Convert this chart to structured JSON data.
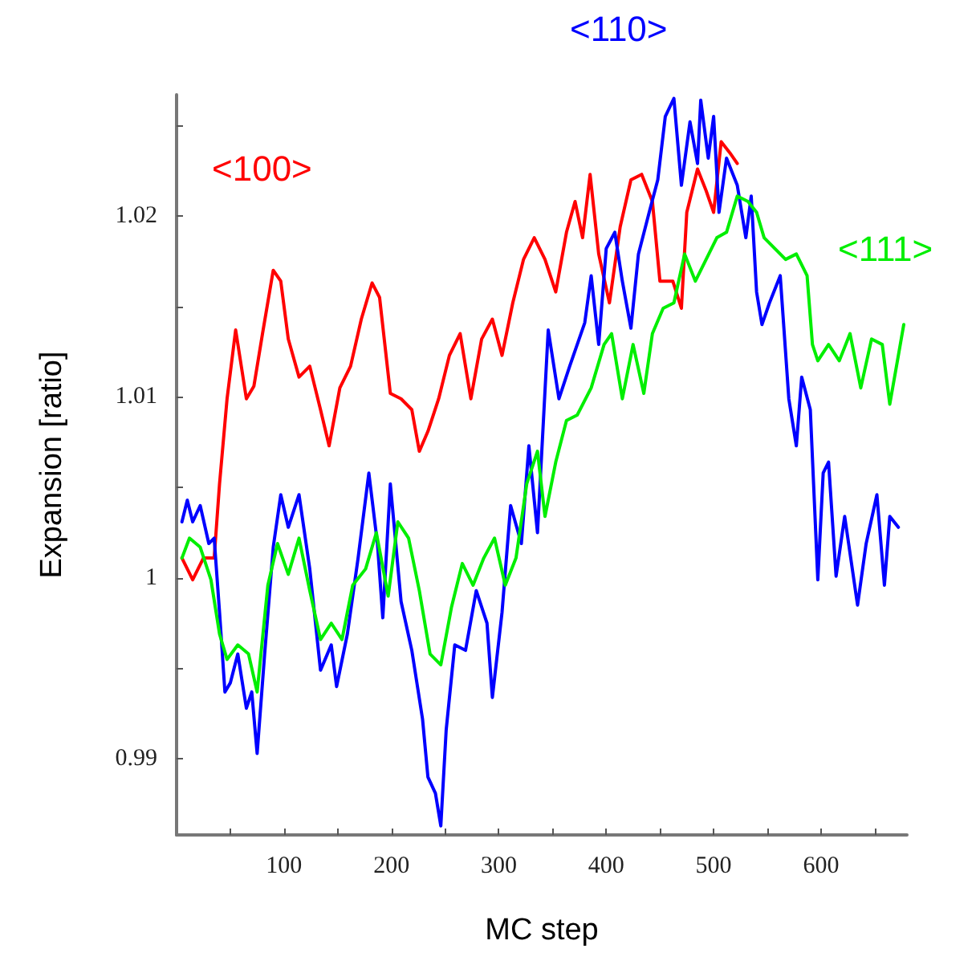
{
  "chart_data": {
    "type": "line",
    "xlabel": "MC step",
    "ylabel": "Expansion [ratio]",
    "xlim": [
      0,
      680
    ],
    "ylim": [
      0.9858,
      1.0267
    ],
    "xticks": [
      {
        "value": 50,
        "label": null
      },
      100,
      {
        "value": 150,
        "label": null
      },
      200,
      {
        "value": 250,
        "label": null
      },
      300,
      {
        "value": 350,
        "label": null
      },
      400,
      {
        "value": 450,
        "label": null
      },
      500,
      {
        "value": 550,
        "label": null
      },
      600,
      {
        "value": 650,
        "label": null
      }
    ],
    "yticks": [
      0.99,
      {
        "value": 0.995,
        "label": null
      },
      1,
      {
        "value": 1.005,
        "label": null
      },
      1.01,
      {
        "value": 1.015,
        "label": null
      },
      1.02,
      {
        "value": 1.025,
        "label": null
      }
    ],
    "grid": false,
    "legend": false,
    "marker": "none",
    "line_style": "solid",
    "series": [
      {
        "name": "<100>",
        "color": "#ff0000",
        "x": [
          5,
          15,
          25,
          35,
          40,
          47,
          55,
          65,
          72,
          80,
          90,
          97,
          104,
          114,
          124,
          134,
          142,
          152,
          162,
          172,
          182,
          189,
          199,
          209,
          219,
          226,
          234,
          244,
          254,
          264,
          274,
          284,
          294,
          303,
          313,
          323,
          333,
          343,
          353,
          363,
          371,
          378,
          385,
          393,
          403,
          413,
          423,
          433,
          443,
          450,
          462,
          470,
          475,
          485,
          493,
          500,
          507,
          515,
          522
        ],
        "values": [
          1.0011,
          0.9999,
          1.0011,
          1.0011,
          1.0052,
          1.0099,
          1.0137,
          1.0099,
          1.0106,
          1.0135,
          1.017,
          1.0164,
          1.0132,
          1.0111,
          1.0117,
          1.0093,
          1.0073,
          1.0105,
          1.0117,
          1.0143,
          1.0163,
          1.0155,
          1.0102,
          1.0099,
          1.0093,
          1.007,
          1.0081,
          1.0099,
          1.0123,
          1.0135,
          1.0099,
          1.0132,
          1.0143,
          1.0123,
          1.0152,
          1.0176,
          1.0188,
          1.0176,
          1.0158,
          1.0191,
          1.0208,
          1.0188,
          1.0223,
          1.0179,
          1.0152,
          1.0194,
          1.022,
          1.0223,
          1.0208,
          1.0164,
          1.0164,
          1.0149,
          1.0202,
          1.0226,
          1.0214,
          1.0202,
          1.0241,
          1.0235,
          1.0229
        ]
      },
      {
        "name": "<110>",
        "color": "#0000ff",
        "x": [
          5,
          10,
          15,
          22,
          30,
          35,
          40,
          45,
          50,
          57,
          65,
          70,
          75,
          82,
          90,
          97,
          104,
          114,
          124,
          134,
          144,
          149,
          159,
          169,
          179,
          187,
          192,
          199,
          209,
          219,
          229,
          234,
          241,
          246,
          251,
          259,
          269,
          279,
          289,
          294,
          303,
          311,
          321,
          328,
          336,
          346,
          356,
          366,
          380,
          386,
          393,
          400,
          408,
          415,
          423,
          430,
          440,
          448,
          455,
          463,
          470,
          478,
          485,
          488,
          495,
          500,
          505,
          512,
          522,
          530,
          535,
          540,
          545,
          552,
          562,
          570,
          577,
          582,
          590,
          597,
          602,
          607,
          614,
          622,
          634,
          642,
          652,
          659,
          664,
          672
        ],
        "values": [
          1.0031,
          1.0043,
          1.0031,
          1.004,
          1.0019,
          1.0022,
          0.9981,
          0.9937,
          0.9942,
          0.9958,
          0.9928,
          0.9937,
          0.9903,
          0.9958,
          1.0017,
          1.0046,
          1.0028,
          1.0046,
          1.0005,
          0.9949,
          0.9963,
          0.994,
          0.9969,
          1.0011,
          1.0058,
          1.0019,
          0.9978,
          1.0052,
          0.9987,
          0.996,
          0.9922,
          0.989,
          0.9881,
          0.9863,
          0.9916,
          0.9963,
          0.996,
          0.9993,
          0.9975,
          0.9934,
          0.9981,
          1.004,
          1.0019,
          1.0073,
          1.0025,
          1.0137,
          1.0099,
          1.0117,
          1.0141,
          1.0167,
          1.0129,
          1.0182,
          1.0191,
          1.0164,
          1.0138,
          1.0179,
          1.0202,
          1.022,
          1.0255,
          1.0265,
          1.0217,
          1.0252,
          1.0229,
          1.0264,
          1.0232,
          1.0255,
          1.0202,
          1.0232,
          1.0217,
          1.0188,
          1.0211,
          1.0158,
          1.014,
          1.0152,
          1.0167,
          1.0099,
          1.0073,
          1.0111,
          1.0093,
          0.9999,
          1.0058,
          1.0064,
          1.0001,
          1.0034,
          0.9985,
          1.0019,
          1.0046,
          0.9996,
          1.0034,
          1.0028
        ]
      },
      {
        "name": "<111>",
        "color": "#00ee00",
        "x": [
          5,
          12,
          22,
          32,
          40,
          47,
          57,
          67,
          75,
          85,
          94,
          104,
          114,
          124,
          134,
          144,
          154,
          164,
          176,
          186,
          197,
          206,
          216,
          226,
          236,
          246,
          256,
          266,
          276,
          286,
          296,
          306,
          316,
          326,
          336,
          343,
          353,
          363,
          373,
          386,
          398,
          405,
          415,
          425,
          435,
          443,
          453,
          463,
          473,
          483,
          493,
          503,
          512,
          522,
          532,
          540,
          547,
          557,
          567,
          577,
          587,
          592,
          597,
          607,
          617,
          627,
          637,
          647,
          657,
          664,
          672,
          677
        ],
        "values": [
          1.0011,
          1.0022,
          1.0017,
          0.9999,
          0.9969,
          0.9955,
          0.9963,
          0.9958,
          0.9937,
          0.9996,
          1.0019,
          1.0002,
          1.0022,
          0.9993,
          0.9966,
          0.9975,
          0.9966,
          0.9996,
          1.0005,
          1.0025,
          0.999,
          1.0031,
          1.0022,
          0.9993,
          0.9958,
          0.9952,
          0.9984,
          1.0008,
          0.9996,
          1.0011,
          1.0022,
          0.9996,
          1.0011,
          1.0052,
          1.007,
          1.0034,
          1.0064,
          1.0087,
          1.009,
          1.0105,
          1.0129,
          1.0135,
          1.0099,
          1.0129,
          1.0102,
          1.0135,
          1.0149,
          1.0152,
          1.0179,
          1.0164,
          1.0176,
          1.0188,
          1.0191,
          1.0211,
          1.0208,
          1.0202,
          1.0188,
          1.0182,
          1.0176,
          1.0179,
          1.0167,
          1.0129,
          1.012,
          1.0129,
          1.012,
          1.0135,
          1.0105,
          1.0132,
          1.0129,
          1.0096,
          1.0123,
          1.014
        ]
      }
    ]
  }
}
